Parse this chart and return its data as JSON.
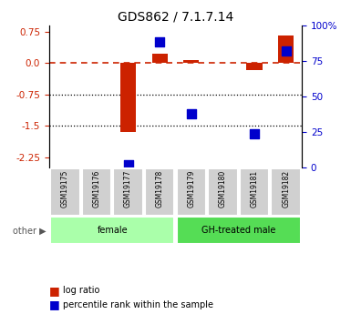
{
  "title": "GDS862 / 7.1.7.14",
  "samples": [
    "GSM19175",
    "GSM19176",
    "GSM19177",
    "GSM19178",
    "GSM19179",
    "GSM19180",
    "GSM19181",
    "GSM19182"
  ],
  "log_ratio": [
    0.0,
    0.0,
    -1.65,
    0.22,
    0.07,
    0.0,
    -0.18,
    0.65
  ],
  "percentile_rank": [
    null,
    null,
    2,
    88,
    38,
    null,
    24,
    82
  ],
  "groups": [
    {
      "label": "female",
      "start": 0,
      "end": 3,
      "color": "#aaffaa"
    },
    {
      "label": "GH-treated male",
      "start": 4,
      "end": 7,
      "color": "#55dd55"
    }
  ],
  "ylim_left": [
    -2.5,
    0.9
  ],
  "ylim_right": [
    0,
    100
  ],
  "yticks_left": [
    0.75,
    0.0,
    -0.75,
    -1.5,
    -2.25
  ],
  "yticks_right": [
    100,
    75,
    50,
    25,
    0
  ],
  "hlines": [
    0.75,
    -0.75,
    -1.5,
    -2.25
  ],
  "bar_color": "#cc2200",
  "dot_color": "#0000cc",
  "zero_line_color": "#cc2200",
  "background_color": "#ffffff",
  "plot_bg": "#ffffff",
  "bar_width": 0.5,
  "dot_size": 60
}
